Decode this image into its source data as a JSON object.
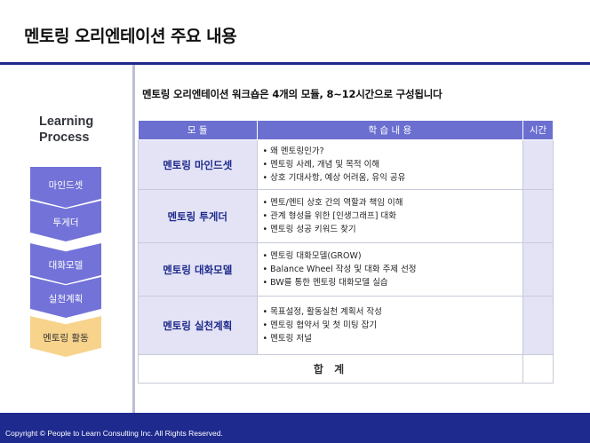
{
  "title": "멘토링 오리엔테이션 주요 내용",
  "side": {
    "heading_line1": "Learning",
    "heading_line2": "Process",
    "steps": [
      {
        "label": "마인드셋",
        "color": "#7272d8"
      },
      {
        "label": "투게더",
        "color": "#7272d8"
      },
      {
        "label": "대화모델",
        "color": "#7272d8"
      },
      {
        "label": "실천계획",
        "color": "#7272d8"
      },
      {
        "label": "멘토링 활동",
        "color": "#f7d38c"
      }
    ]
  },
  "subtitle": "멘토링 오리엔테이션 워크숍은 4개의 모듈, 8~12시간으로 구성됩니다",
  "table": {
    "headers": [
      "모 듈",
      "학 습 내 용",
      "시간"
    ],
    "rows": [
      {
        "module": "멘토링 마인드셋",
        "items": [
          "왜 멘토링인가?",
          "멘토링 사례, 개념 및 목적 이해",
          "상호 기대사항, 예상 어려움, 유익 공유"
        ]
      },
      {
        "module": "멘토링 투게더",
        "items": [
          "멘토/멘티 상호 간의 역할과 책임 이해",
          "관계 형성을 위한 [인생그래프] 대화",
          "멘토링 성공 키워드 찾기"
        ]
      },
      {
        "module": "멘토링 대화모델",
        "items": [
          "멘토링 대화모델(GROW)",
          "Balance Wheel 작성 및 대화 주제 선정",
          "BW를 통한 멘토링 대화모델 실습"
        ]
      },
      {
        "module": "멘토링 실천계획",
        "items": [
          "목표설정, 활동실천 계획서 작성",
          "멘토링 협약서 및 첫 미팅 잡기",
          "멘토링 저널"
        ]
      }
    ],
    "total_label": "합 계"
  },
  "colors": {
    "brand": "#1e2a8e",
    "header": "#6b6fd0",
    "cell": "#e3e3f5",
    "highlight": "#f7d38c"
  },
  "footer": {
    "copyright": "Copyright © People to Learn Consulting Inc.  All Rights Reserved."
  }
}
